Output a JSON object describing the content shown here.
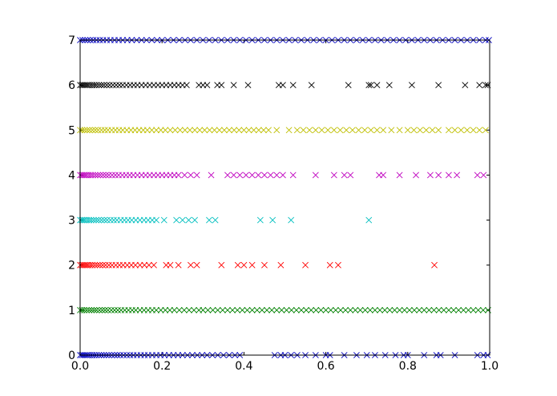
{
  "chart_data": {
    "type": "scatter",
    "title": "",
    "xlabel": "",
    "ylabel": "",
    "xlim": [
      0.0,
      1.0
    ],
    "ylim": [
      0,
      7
    ],
    "grid": false,
    "legend": "none",
    "marker": "x",
    "x_ticks": [
      "0.0",
      "0.2",
      "0.4",
      "0.6",
      "0.8",
      "1.0"
    ],
    "y_ticks": [
      "0",
      "1",
      "2",
      "3",
      "4",
      "5",
      "6",
      "7"
    ],
    "series": [
      {
        "y": 0,
        "color": "#0000bf",
        "x": [
          0.0,
          0.004,
          0.008,
          0.012,
          0.016,
          0.02,
          0.025,
          0.03,
          0.035,
          0.04,
          0.046,
          0.052,
          0.058,
          0.064,
          0.07,
          0.077,
          0.084,
          0.091,
          0.098,
          0.106,
          0.114,
          0.122,
          0.13,
          0.139,
          0.148,
          0.157,
          0.166,
          0.176,
          0.186,
          0.196,
          0.206,
          0.217,
          0.228,
          0.239,
          0.25,
          0.262,
          0.274,
          0.286,
          0.298,
          0.31,
          0.323,
          0.336,
          0.35,
          0.364,
          0.378,
          0.39,
          0.475,
          0.49,
          0.5,
          0.515,
          0.53,
          0.55,
          0.575,
          0.6,
          0.61,
          0.645,
          0.675,
          0.7,
          0.72,
          0.745,
          0.77,
          0.79,
          0.8,
          0.84,
          0.87,
          0.88,
          0.915,
          0.97,
          0.985,
          0.995
        ]
      },
      {
        "y": 1,
        "color": "#008000",
        "x": [
          0.0,
          0.005,
          0.01,
          0.016,
          0.022,
          0.028,
          0.034,
          0.04,
          0.047,
          0.054,
          0.061,
          0.068,
          0.076,
          0.084,
          0.092,
          0.1,
          0.109,
          0.118,
          0.127,
          0.136,
          0.146,
          0.156,
          0.166,
          0.176,
          0.186,
          0.197,
          0.208,
          0.219,
          0.23,
          0.242,
          0.254,
          0.266,
          0.278,
          0.29,
          0.3,
          0.312,
          0.324,
          0.336,
          0.348,
          0.36,
          0.372,
          0.384,
          0.396,
          0.408,
          0.42,
          0.432,
          0.444,
          0.456,
          0.468,
          0.48,
          0.492,
          0.504,
          0.516,
          0.528,
          0.54,
          0.552,
          0.564,
          0.576,
          0.588,
          0.6,
          0.612,
          0.624,
          0.636,
          0.648,
          0.66,
          0.672,
          0.684,
          0.696,
          0.708,
          0.72,
          0.732,
          0.744,
          0.756,
          0.768,
          0.78,
          0.792,
          0.804,
          0.816,
          0.828,
          0.84,
          0.852,
          0.864,
          0.876,
          0.888,
          0.9,
          0.912,
          0.924,
          0.936,
          0.948,
          0.96,
          0.972,
          0.984,
          0.996
        ]
      },
      {
        "y": 2,
        "color": "#ff0000",
        "x": [
          0.0,
          0.004,
          0.008,
          0.012,
          0.016,
          0.02,
          0.025,
          0.03,
          0.036,
          0.042,
          0.048,
          0.055,
          0.062,
          0.07,
          0.078,
          0.087,
          0.096,
          0.105,
          0.115,
          0.125,
          0.135,
          0.146,
          0.157,
          0.168,
          0.18,
          0.21,
          0.22,
          0.24,
          0.27,
          0.285,
          0.345,
          0.385,
          0.4,
          0.42,
          0.45,
          0.49,
          0.55,
          0.61,
          0.63,
          0.865
        ]
      },
      {
        "y": 3,
        "color": "#00bfbf",
        "x": [
          0.0,
          0.004,
          0.008,
          0.012,
          0.017,
          0.022,
          0.027,
          0.033,
          0.039,
          0.045,
          0.052,
          0.059,
          0.066,
          0.074,
          0.082,
          0.09,
          0.099,
          0.108,
          0.117,
          0.126,
          0.136,
          0.146,
          0.156,
          0.166,
          0.176,
          0.186,
          0.205,
          0.235,
          0.25,
          0.265,
          0.28,
          0.315,
          0.33,
          0.44,
          0.47,
          0.515,
          0.705
        ]
      },
      {
        "y": 4,
        "color": "#bf00bf",
        "x": [
          0.0,
          0.004,
          0.008,
          0.012,
          0.016,
          0.021,
          0.026,
          0.031,
          0.037,
          0.043,
          0.049,
          0.056,
          0.063,
          0.07,
          0.078,
          0.086,
          0.094,
          0.103,
          0.112,
          0.121,
          0.13,
          0.14,
          0.15,
          0.16,
          0.17,
          0.18,
          0.19,
          0.2,
          0.21,
          0.22,
          0.23,
          0.24,
          0.255,
          0.27,
          0.285,
          0.32,
          0.36,
          0.375,
          0.39,
          0.405,
          0.42,
          0.435,
          0.45,
          0.465,
          0.48,
          0.495,
          0.52,
          0.575,
          0.62,
          0.645,
          0.66,
          0.73,
          0.74,
          0.78,
          0.82,
          0.855,
          0.875,
          0.9,
          0.92,
          0.97,
          0.985
        ]
      },
      {
        "y": 5,
        "color": "#bfbf00",
        "x": [
          0.0,
          0.005,
          0.011,
          0.017,
          0.023,
          0.03,
          0.037,
          0.044,
          0.052,
          0.06,
          0.068,
          0.077,
          0.086,
          0.095,
          0.104,
          0.114,
          0.124,
          0.134,
          0.144,
          0.154,
          0.164,
          0.175,
          0.186,
          0.197,
          0.208,
          0.22,
          0.232,
          0.244,
          0.256,
          0.268,
          0.28,
          0.292,
          0.304,
          0.316,
          0.328,
          0.34,
          0.352,
          0.364,
          0.376,
          0.388,
          0.4,
          0.412,
          0.424,
          0.436,
          0.448,
          0.46,
          0.48,
          0.51,
          0.53,
          0.545,
          0.56,
          0.575,
          0.59,
          0.605,
          0.62,
          0.635,
          0.65,
          0.665,
          0.68,
          0.695,
          0.71,
          0.725,
          0.74,
          0.76,
          0.78,
          0.8,
          0.815,
          0.83,
          0.845,
          0.86,
          0.875,
          0.9,
          0.915,
          0.93,
          0.945,
          0.96,
          0.975,
          0.99
        ]
      },
      {
        "y": 6,
        "color": "#000000",
        "x": [
          0.0,
          0.004,
          0.008,
          0.012,
          0.016,
          0.02,
          0.025,
          0.03,
          0.035,
          0.04,
          0.046,
          0.052,
          0.058,
          0.065,
          0.072,
          0.08,
          0.088,
          0.096,
          0.104,
          0.113,
          0.122,
          0.131,
          0.14,
          0.15,
          0.16,
          0.17,
          0.18,
          0.19,
          0.2,
          0.21,
          0.22,
          0.23,
          0.24,
          0.25,
          0.26,
          0.29,
          0.3,
          0.31,
          0.335,
          0.345,
          0.375,
          0.41,
          0.485,
          0.495,
          0.52,
          0.565,
          0.655,
          0.705,
          0.71,
          0.725,
          0.755,
          0.81,
          0.875,
          0.94,
          0.975,
          0.99,
          0.995
        ]
      },
      {
        "y": 7,
        "color": "#0000bf",
        "x": [
          0.0,
          0.006,
          0.012,
          0.018,
          0.025,
          0.032,
          0.04,
          0.048,
          0.056,
          0.065,
          0.074,
          0.084,
          0.094,
          0.104,
          0.115,
          0.126,
          0.138,
          0.15,
          0.162,
          0.175,
          0.188,
          0.2,
          0.214,
          0.228,
          0.242,
          0.256,
          0.27,
          0.285,
          0.3,
          0.315,
          0.33,
          0.345,
          0.36,
          0.375,
          0.39,
          0.405,
          0.42,
          0.435,
          0.45,
          0.465,
          0.48,
          0.495,
          0.51,
          0.525,
          0.54,
          0.555,
          0.57,
          0.585,
          0.6,
          0.615,
          0.63,
          0.645,
          0.66,
          0.675,
          0.69,
          0.705,
          0.72,
          0.735,
          0.75,
          0.765,
          0.78,
          0.795,
          0.81,
          0.825,
          0.84,
          0.855,
          0.87,
          0.885,
          0.9,
          0.915,
          0.93,
          0.945,
          0.96,
          0.975,
          0.99,
          0.998
        ]
      }
    ]
  }
}
